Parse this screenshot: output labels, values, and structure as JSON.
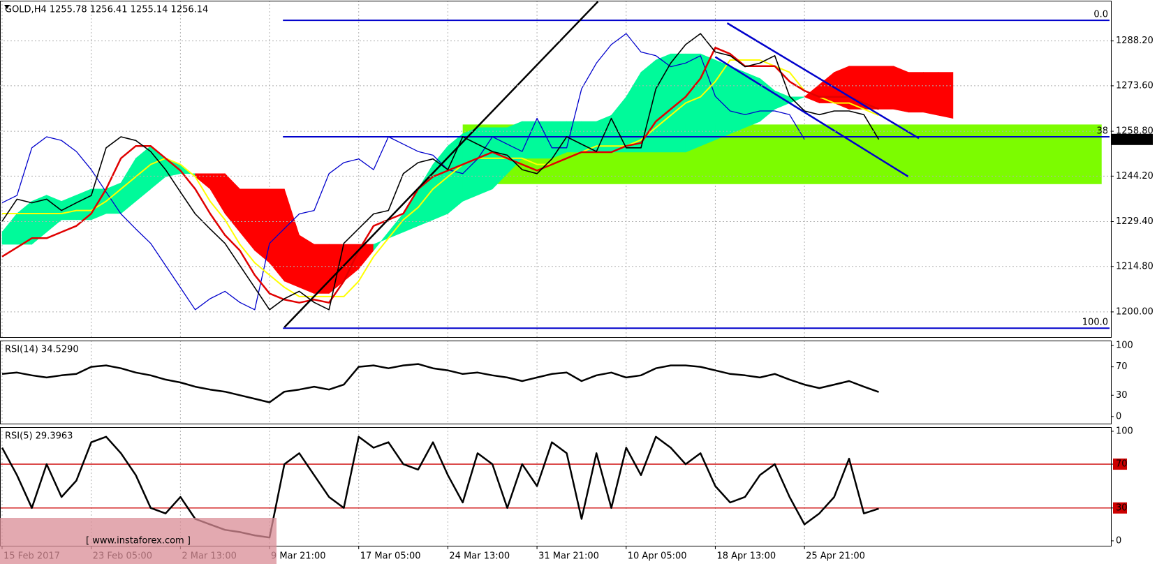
{
  "chart_data": [
    {
      "type": "line",
      "title": "GOLD,H4  1255.78 1256.41 1255.14 1256.14",
      "categories": [
        "15 Feb 2017",
        null,
        null,
        null,
        null,
        null,
        "23 Feb 05:00",
        null,
        null,
        null,
        null,
        null,
        "2 Mar 13:00",
        null,
        null,
        null,
        null,
        null,
        "9 Mar 21:00",
        null,
        null,
        null,
        null,
        null,
        "17 Mar 05:00",
        null,
        null,
        null,
        null,
        null,
        "24 Mar 13:00",
        null,
        null,
        null,
        null,
        null,
        "31 Mar 21:00",
        null,
        null,
        null,
        null,
        null,
        "10 Apr 05:00",
        null,
        null,
        null,
        null,
        null,
        "18 Apr 13:00",
        null,
        null,
        null,
        null,
        null,
        "25 Apr 21:00",
        null,
        null,
        null,
        null,
        null,
        null,
        null,
        null,
        null,
        null
      ],
      "ylim": [
        1191.8,
        1301.3
      ],
      "yticks": [
        {
          "value": 1288.2,
          "label": "1288.20"
        },
        {
          "value": 1273.6,
          "label": "1273.60"
        },
        {
          "value": 1258.8,
          "label": "1258.80"
        },
        {
          "value": 1244.2,
          "label": "1244.20"
        },
        {
          "value": 1229.4,
          "label": "1229.40"
        },
        {
          "value": 1214.8,
          "label": "1214.80"
        },
        {
          "value": 1200,
          "label": "1200.00"
        }
      ],
      "grid": true,
      "zone": {
        "x": [
          31,
          74
        ],
        "y": [
          1241.6,
          1261
        ],
        "color": "#7cfc00"
      },
      "cloud": {
        "up_color": "#00fa9a",
        "down_color": "#ff0000",
        "span_a": [
          1226,
          1232,
          1236,
          1238,
          1236,
          1238,
          1240,
          1240,
          1242,
          1250,
          1254,
          1250,
          1248,
          1244,
          1240,
          1232,
          1226,
          1220,
          1216,
          1210,
          1208,
          1206,
          1206,
          1210,
          1214,
          1220,
          1226,
          1232,
          1240,
          1248,
          1254,
          1258,
          1260,
          1260,
          1260,
          1262,
          1262,
          1262,
          1262,
          1262,
          1262,
          1264,
          1270,
          1278,
          1282,
          1284,
          1284,
          1284,
          1282,
          1280,
          1278,
          1276,
          1272,
          1270,
          1270,
          1268,
          1268,
          1266,
          1266,
          1266,
          1266,
          1265,
          1265,
          1264,
          1263
        ],
        "span_b": [
          1222,
          1222,
          1222,
          1226,
          1230,
          1230,
          1230,
          1232,
          1232,
          1236,
          1240,
          1244,
          1245,
          1245,
          1245,
          1245,
          1240,
          1240,
          1240,
          1240,
          1225,
          1222,
          1222,
          1222,
          1222,
          1222,
          1224,
          1226,
          1228,
          1230,
          1232,
          1236,
          1238,
          1240,
          1245,
          1250,
          1250,
          1250,
          1252,
          1252,
          1252,
          1252,
          1252,
          1252,
          1252,
          1252,
          1252,
          1254,
          1256,
          1258,
          1260,
          1262,
          1266,
          1268,
          1270,
          1274,
          1278,
          1280,
          1280,
          1280,
          1280,
          1278,
          1278,
          1278,
          1278
        ]
      },
      "fib": {
        "x0": 18.9,
        "color": "#0000cc",
        "levels": [
          {
            "value": 1294.9,
            "label": "0.0"
          },
          {
            "value": 1257.0,
            "label": "38"
          },
          {
            "value": 1194.7,
            "label": "100.0"
          }
        ]
      },
      "series": [
        {
          "color": "#0000cc",
          "width": 1.3,
          "values": [
            1235.5,
            1237.9,
            1253.4,
            1257,
            1255.8,
            1252.2,
            1246.3,
            1239,
            1231.9,
            1227,
            1222.3,
            1215.1,
            1207.9,
            1200.7,
            1204.3,
            1206.7,
            1203.1,
            1200.7,
            1222.3,
            1227.1,
            1231.9,
            1233,
            1245,
            1248.6,
            1249.8,
            1246.3,
            1257,
            1254.6,
            1252.2,
            1251,
            1246.3,
            1245,
            1249.8,
            1257,
            1254.6,
            1252.2,
            1263,
            1253.4,
            1253.4,
            1272.6,
            1281,
            1287,
            1290.6,
            1284.6,
            1283.4,
            1279.8,
            1281,
            1283.4,
            1270.2,
            1265.4,
            1264.2,
            1265.4,
            1265.4,
            1264.2,
            1256.14,
            null,
            null,
            null,
            null,
            null,
            null,
            null,
            null,
            null,
            null
          ]
        },
        {
          "color": "#ffff00",
          "width": 2,
          "values": [
            1232,
            1232,
            1232,
            1232,
            1232,
            1233,
            1233,
            1236,
            1240,
            1244,
            1248,
            1250,
            1248,
            1244,
            1236,
            1230,
            1222,
            1216,
            1212,
            1208,
            1205,
            1205,
            1205,
            1205,
            1210,
            1218,
            1224,
            1230,
            1234,
            1240,
            1244,
            1248,
            1250,
            1250,
            1250,
            1250,
            1248,
            1248,
            1250,
            1252,
            1254,
            1254,
            1254,
            1256,
            1260,
            1264,
            1268,
            1270,
            1275,
            1282,
            1282,
            1282,
            1280,
            1278,
            1272,
            1270,
            1268,
            1268,
            1266,
            1264,
            null,
            null,
            null,
            null,
            null
          ]
        },
        {
          "color": "#e00000",
          "width": 2.5,
          "values": [
            1218,
            1221,
            1224,
            1224,
            1226,
            1228,
            1232,
            1240,
            1250,
            1254,
            1254,
            1250,
            1246,
            1240,
            1232,
            1225,
            1220,
            1212,
            1206,
            1204,
            1203,
            1204,
            1203,
            1210,
            1220,
            1228,
            1230,
            1232,
            1240,
            1244,
            1246,
            1248,
            1250,
            1252,
            1250,
            1248,
            1246,
            1248,
            1250,
            1252,
            1252,
            1252,
            1254,
            1255,
            1262,
            1266,
            1270,
            1276,
            1286,
            1284,
            1280,
            1280,
            1280,
            1275,
            1272,
            1270,
            1270,
            1270,
            1268,
            1266,
            null,
            null,
            null,
            null,
            null
          ]
        },
        {
          "color": "#000000",
          "width": 1.6,
          "values": [
            1229.5,
            1236.7,
            1235.5,
            1236.7,
            1233,
            1235.5,
            1237.9,
            1253.4,
            1257,
            1255.8,
            1252.2,
            1246.3,
            1239,
            1231.9,
            1227,
            1222.3,
            1215.1,
            1207.9,
            1200.7,
            1204.3,
            1206.7,
            1203.1,
            1200.7,
            1222.3,
            1227.1,
            1231.9,
            1233,
            1245,
            1248.6,
            1249.8,
            1246.3,
            1257,
            1254.6,
            1252.2,
            1251,
            1246.3,
            1245,
            1249.8,
            1257,
            1254.6,
            1252.2,
            1263,
            1253.4,
            1253.4,
            1272.6,
            1281,
            1287,
            1290.6,
            1284.6,
            1283.4,
            1279.8,
            1281,
            1283.4,
            1270.2,
            1265.4,
            1264.2,
            1265.4,
            1265.4,
            1264.2,
            1256.14,
            null,
            null,
            null,
            null,
            null
          ]
        }
      ],
      "trendlines": [
        {
          "x": [
            19.0,
            40.1
          ],
          "y": [
            1195,
            1301
          ],
          "color": "#000000"
        },
        {
          "x": [
            48.8,
            61.7
          ],
          "y": [
            1294,
            1256.5
          ],
          "color": "#0000cc"
        },
        {
          "x": [
            48.0,
            61.0
          ],
          "y": [
            1283,
            1244
          ],
          "color": "#0000cc"
        }
      ],
      "watermark": "[ www.instaforex.com ]"
    },
    {
      "type": "line",
      "title": "RSI(14) 34.5290",
      "ylim": [
        -10,
        107
      ],
      "yticks": [
        0,
        30,
        70,
        100
      ],
      "color": "#000000",
      "values": [
        60,
        62,
        58,
        55,
        58,
        60,
        70,
        72,
        68,
        62,
        58,
        52,
        48,
        42,
        38,
        35,
        30,
        25,
        20,
        35,
        38,
        42,
        38,
        45,
        70,
        72,
        68,
        72,
        74,
        68,
        65,
        60,
        62,
        58,
        55,
        50,
        55,
        60,
        62,
        50,
        58,
        62,
        55,
        58,
        68,
        72,
        72,
        70,
        65,
        60,
        58,
        55,
        60,
        52,
        45,
        40,
        45,
        50,
        42,
        34.529
      ]
    },
    {
      "type": "line",
      "title": "RSI(5) 29.3963",
      "ylim": [
        -4.5,
        103.8
      ],
      "yticks": [
        0,
        30,
        70,
        100
      ],
      "levels": [
        30,
        70
      ],
      "level_color": "#cc0000",
      "color": "#000000",
      "values": [
        85,
        60,
        30,
        70,
        40,
        55,
        90,
        95,
        80,
        60,
        30,
        25,
        40,
        20,
        15,
        10,
        8,
        5,
        3,
        70,
        80,
        60,
        40,
        30,
        95,
        85,
        90,
        70,
        65,
        90,
        60,
        35,
        80,
        70,
        30,
        70,
        50,
        90,
        80,
        20,
        80,
        30,
        85,
        60,
        95,
        85,
        70,
        80,
        50,
        35,
        40,
        60,
        70,
        40,
        15,
        25,
        40,
        75,
        25,
        29.3963
      ]
    }
  ]
}
